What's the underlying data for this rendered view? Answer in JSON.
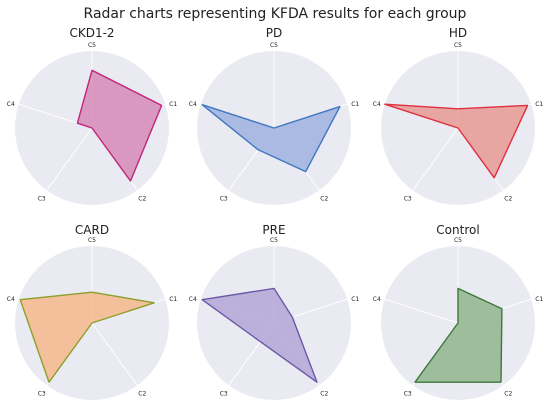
{
  "figure_title": "Radar charts representing KFDA results for each group",
  "axes_labels": [
    "C1",
    "C2",
    "C3",
    "C4",
    "C5"
  ],
  "chart_data": [
    {
      "type": "radar",
      "title": "CKD1-2",
      "axes": [
        "C1",
        "C2",
        "C3",
        "C4",
        "C5"
      ],
      "values": [
        0.95,
        0.85,
        0.0,
        0.2,
        0.75
      ],
      "rlim": [
        0,
        1
      ],
      "color": "#c0267c",
      "fill": "#d68ab7",
      "grid": true
    },
    {
      "type": "radar",
      "title": "PD",
      "axes": [
        "C1",
        "C2",
        "C3",
        "C4",
        "C5"
      ],
      "values": [
        0.9,
        0.7,
        0.35,
        0.98,
        0.0
      ],
      "rlim": [
        0,
        1
      ],
      "color": "#3f78c0",
      "fill": "#9fb2e0",
      "grid": true
    },
    {
      "type": "radar",
      "title": "HD",
      "axes": [
        "C1",
        "C2",
        "C3",
        "C4",
        "C5"
      ],
      "values": [
        0.95,
        0.8,
        0.0,
        1.0,
        0.25
      ],
      "rlim": [
        0,
        1
      ],
      "color": "#e0303f",
      "fill": "#e89a95",
      "grid": true
    },
    {
      "type": "radar",
      "title": "CARD",
      "axes": [
        "C1",
        "C2",
        "C3",
        "C4",
        "C5"
      ],
      "values": [
        0.85,
        0.0,
        0.95,
        0.98,
        0.4
      ],
      "rlim": [
        0,
        1
      ],
      "color": "#8d9f2a",
      "fill": "#f5b88c",
      "grid": true
    },
    {
      "type": "radar",
      "title": "PRE",
      "axes": [
        "C1",
        "C2",
        "C3",
        "C4",
        "C5"
      ],
      "values": [
        0.25,
        0.95,
        0.3,
        0.98,
        0.45
      ],
      "rlim": [
        0,
        1
      ],
      "color": "#6a5aa8",
      "fill": "#b2a6d6",
      "grid": true
    },
    {
      "type": "radar",
      "title": "Control",
      "axes": [
        "C1",
        "C2",
        "C3",
        "C4",
        "C5"
      ],
      "values": [
        0.6,
        0.95,
        0.95,
        0.0,
        0.45
      ],
      "rlim": [
        0,
        1
      ],
      "color": "#3c7a3a",
      "fill": "#8fb58d",
      "grid": true
    }
  ]
}
